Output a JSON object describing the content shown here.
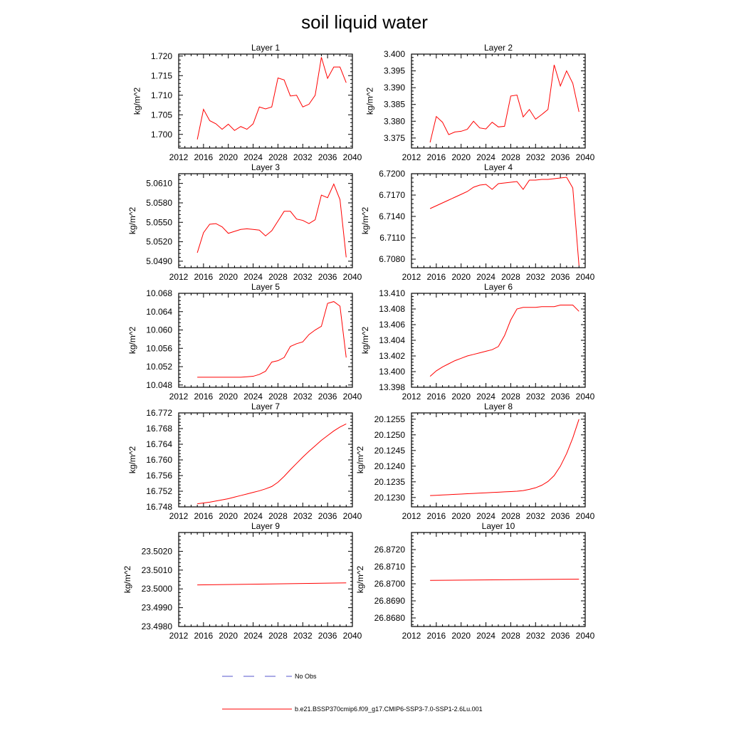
{
  "title": "soil liquid water",
  "colors": {
    "model": "#ff0000",
    "obs": "#5555cc",
    "axis": "#000000"
  },
  "legend": {
    "obs_label": "No Obs",
    "model_label": "b.e21.BSSP370cmip6.f09_g17.CMIP6-SSP3-7.0-SSP1-2.6Lu.001"
  },
  "chart_data": [
    {
      "type": "line",
      "title": "Layer 1",
      "xlabel": "",
      "ylabel": "kg/m^2",
      "xlim": [
        2012,
        2040
      ],
      "ylim": [
        1.6965,
        1.7205
      ],
      "xticks": [
        "2012",
        "2016",
        "2020",
        "2024",
        "2028",
        "2032",
        "2036",
        "2040"
      ],
      "yticks": [
        "1.700",
        "1.705",
        "1.710",
        "1.715",
        "1.720"
      ],
      "series": [
        {
          "x": [
            2015,
            2016,
            2017,
            2018,
            2019,
            2020,
            2021,
            2022,
            2023,
            2024,
            2025,
            2026,
            2027,
            2028,
            2029,
            2030,
            2031,
            2032,
            2033,
            2034,
            2035,
            2036,
            2037,
            2038,
            2039
          ],
          "y": [
            1.6987,
            1.7064,
            1.7035,
            1.7027,
            1.7013,
            1.7026,
            1.701,
            1.702,
            1.7013,
            1.7027,
            1.707,
            1.7065,
            1.707,
            1.7144,
            1.7139,
            1.7098,
            1.71,
            1.707,
            1.7077,
            1.71,
            1.7197,
            1.7143,
            1.7172,
            1.7172,
            1.7132
          ]
        }
      ]
    },
    {
      "type": "line",
      "title": "Layer 2",
      "xlabel": "",
      "ylabel": "kg/m^2",
      "xlim": [
        2012,
        2040
      ],
      "ylim": [
        3.372,
        3.4
      ],
      "xticks": [
        "2012",
        "2016",
        "2020",
        "2024",
        "2028",
        "2032",
        "2036",
        "2040"
      ],
      "yticks": [
        "3.375",
        "3.380",
        "3.385",
        "3.390",
        "3.395",
        "3.400"
      ],
      "series": [
        {
          "x": [
            2015,
            2016,
            2017,
            2018,
            2019,
            2020,
            2021,
            2022,
            2023,
            2024,
            2025,
            2026,
            2027,
            2028,
            2029,
            2030,
            2031,
            2032,
            2033,
            2034,
            2035,
            2036,
            2037,
            2038,
            2039
          ],
          "y": [
            3.3737,
            3.3814,
            3.3797,
            3.376,
            3.3768,
            3.377,
            3.3776,
            3.38,
            3.378,
            3.3777,
            3.3797,
            3.3783,
            3.3785,
            3.3875,
            3.3878,
            3.3813,
            3.3835,
            3.3806,
            3.382,
            3.3835,
            3.3968,
            3.3905,
            3.395,
            3.3913,
            3.3828
          ]
        }
      ]
    },
    {
      "type": "line",
      "title": "Layer 3",
      "xlabel": "",
      "ylabel": "kg/m^2",
      "xlim": [
        2012,
        2040
      ],
      "ylim": [
        5.048,
        5.0625
      ],
      "xticks": [
        "2012",
        "2016",
        "2020",
        "2024",
        "2028",
        "2032",
        "2036",
        "2040"
      ],
      "yticks": [
        "5.0490",
        "5.0520",
        "5.0550",
        "5.0580",
        "5.0610"
      ],
      "series": [
        {
          "x": [
            2015,
            2016,
            2017,
            2018,
            2019,
            2020,
            2021,
            2022,
            2023,
            2024,
            2025,
            2026,
            2027,
            2028,
            2029,
            2030,
            2031,
            2032,
            2033,
            2034,
            2035,
            2036,
            2037,
            2038,
            2039
          ],
          "y": [
            5.0503,
            5.0534,
            5.0547,
            5.0548,
            5.0543,
            5.0533,
            5.0536,
            5.0539,
            5.054,
            5.0539,
            5.0538,
            5.0529,
            5.0537,
            5.0552,
            5.0567,
            5.0567,
            5.0555,
            5.0553,
            5.0548,
            5.0554,
            5.0592,
            5.0588,
            5.0609,
            5.0585,
            5.0496
          ]
        }
      ]
    },
    {
      "type": "line",
      "title": "Layer 4",
      "xlabel": "",
      "ylabel": "kg/m^2",
      "xlim": [
        2012,
        2040
      ],
      "ylim": [
        6.7068,
        6.72
      ],
      "xticks": [
        "2012",
        "2016",
        "2020",
        "2024",
        "2028",
        "2032",
        "2036",
        "2040"
      ],
      "yticks": [
        "6.7080",
        "6.7110",
        "6.7140",
        "6.7170",
        "6.7200"
      ],
      "series": [
        {
          "x": [
            2015,
            2016,
            2017,
            2018,
            2019,
            2020,
            2021,
            2022,
            2023,
            2024,
            2025,
            2026,
            2027,
            2028,
            2029,
            2030,
            2031,
            2032,
            2033,
            2034,
            2035,
            2036,
            2037,
            2038,
            2039
          ],
          "y": [
            6.7151,
            6.7155,
            6.7159,
            6.7163,
            6.7167,
            6.7171,
            6.7175,
            6.7181,
            6.7184,
            6.7185,
            6.7178,
            6.7186,
            6.7187,
            6.7188,
            6.7189,
            6.7178,
            6.7191,
            6.7191,
            6.7192,
            6.7192,
            6.7193,
            6.7194,
            6.7195,
            6.718,
            6.7071
          ]
        }
      ]
    },
    {
      "type": "line",
      "title": "Layer 5",
      "xlabel": "",
      "ylabel": "kg/m^2",
      "xlim": [
        2012,
        2040
      ],
      "ylim": [
        10.0475,
        10.068
      ],
      "xticks": [
        "2012",
        "2016",
        "2020",
        "2024",
        "2028",
        "2032",
        "2036",
        "2040"
      ],
      "yticks": [
        "10.048",
        "10.052",
        "10.056",
        "10.060",
        "10.064",
        "10.068"
      ],
      "series": [
        {
          "x": [
            2015,
            2016,
            2017,
            2018,
            2019,
            2020,
            2021,
            2022,
            2023,
            2024,
            2025,
            2026,
            2027,
            2028,
            2029,
            2030,
            2031,
            2032,
            2033,
            2034,
            2035,
            2036,
            2037,
            2038,
            2039
          ],
          "y": [
            10.0497,
            10.0497,
            10.0497,
            10.0497,
            10.0497,
            10.0497,
            10.0497,
            10.0497,
            10.0498,
            10.0499,
            10.0503,
            10.051,
            10.053,
            10.0533,
            10.054,
            10.0564,
            10.057,
            10.0574,
            10.059,
            10.06,
            10.0608,
            10.0658,
            10.0662,
            10.0652,
            10.054
          ]
        }
      ]
    },
    {
      "type": "line",
      "title": "Layer 6",
      "xlabel": "",
      "ylabel": "kg/m^2",
      "xlim": [
        2012,
        2040
      ],
      "ylim": [
        13.398,
        13.41
      ],
      "xticks": [
        "2012",
        "2016",
        "2020",
        "2024",
        "2028",
        "2032",
        "2036",
        "2040"
      ],
      "yticks": [
        "13.398",
        "13.400",
        "13.402",
        "13.404",
        "13.406",
        "13.408",
        "13.410"
      ],
      "series": [
        {
          "x": [
            2015,
            2016,
            2017,
            2018,
            2019,
            2020,
            2021,
            2022,
            2023,
            2024,
            2025,
            2026,
            2027,
            2028,
            2029,
            2030,
            2031,
            2032,
            2033,
            2034,
            2035,
            2036,
            2037,
            2038,
            2039
          ],
          "y": [
            13.3994,
            13.4001,
            13.4006,
            13.401,
            13.4014,
            13.4017,
            13.402,
            13.4022,
            13.4024,
            13.4026,
            13.4028,
            13.4032,
            13.4046,
            13.4066,
            13.408,
            13.4082,
            13.4082,
            13.4082,
            13.4083,
            13.4083,
            13.4083,
            13.4085,
            13.4085,
            13.4085,
            13.4077
          ]
        }
      ]
    },
    {
      "type": "line",
      "title": "Layer 7",
      "xlabel": "",
      "ylabel": "kg/m^2",
      "xlim": [
        2012,
        2040
      ],
      "ylim": [
        16.748,
        16.772
      ],
      "xticks": [
        "2012",
        "2016",
        "2020",
        "2024",
        "2028",
        "2032",
        "2036",
        "2040"
      ],
      "yticks": [
        "16.748",
        "16.752",
        "16.756",
        "16.760",
        "16.764",
        "16.768",
        "16.772"
      ],
      "series": [
        {
          "x": [
            2015,
            2016,
            2017,
            2018,
            2019,
            2020,
            2021,
            2022,
            2023,
            2024,
            2025,
            2026,
            2027,
            2028,
            2029,
            2030,
            2031,
            2032,
            2033,
            2034,
            2035,
            2036,
            2037,
            2038,
            2039
          ],
          "y": [
            16.7488,
            16.749,
            16.7492,
            16.7495,
            16.7498,
            16.7501,
            16.7505,
            16.7509,
            16.7513,
            16.7517,
            16.7521,
            16.7526,
            16.7532,
            16.7543,
            16.7558,
            16.7575,
            16.7591,
            16.7607,
            16.7622,
            16.7636,
            16.765,
            16.7662,
            16.7674,
            16.7684,
            16.7692
          ]
        }
      ]
    },
    {
      "type": "line",
      "title": "Layer 8",
      "xlabel": "",
      "ylabel": "kg/m^2",
      "xlim": [
        2012,
        2040
      ],
      "ylim": [
        20.1227,
        20.1257
      ],
      "xticks": [
        "2012",
        "2016",
        "2020",
        "2024",
        "2028",
        "2032",
        "2036",
        "2040"
      ],
      "yticks": [
        "20.1230",
        "20.1235",
        "20.1240",
        "20.1245",
        "20.1250",
        "20.1255"
      ],
      "series": [
        {
          "x": [
            2015,
            2016,
            2017,
            2018,
            2019,
            2020,
            2021,
            2022,
            2023,
            2024,
            2025,
            2026,
            2027,
            2028,
            2029,
            2030,
            2031,
            2032,
            2033,
            2034,
            2035,
            2036,
            2037,
            2038,
            2039
          ],
          "y": [
            20.12306,
            20.12307,
            20.12308,
            20.12309,
            20.1231,
            20.12311,
            20.12312,
            20.12313,
            20.12314,
            20.12315,
            20.12316,
            20.12317,
            20.12318,
            20.12319,
            20.1232,
            20.12322,
            20.12326,
            20.12331,
            20.12339,
            20.12351,
            20.1237,
            20.124,
            20.1244,
            20.1249,
            20.1255
          ]
        }
      ]
    },
    {
      "type": "line",
      "title": "Layer 9",
      "xlabel": "",
      "ylabel": "kg/m^2",
      "xlim": [
        2012,
        2040
      ],
      "ylim": [
        23.498,
        23.503
      ],
      "xticks": [
        "2012",
        "2016",
        "2020",
        "2024",
        "2028",
        "2032",
        "2036",
        "2040"
      ],
      "yticks": [
        "23.4980",
        "23.4990",
        "23.5000",
        "23.5010",
        "23.5020"
      ],
      "series": [
        {
          "x": [
            2015,
            2039
          ],
          "y": [
            23.50021,
            23.50032
          ]
        }
      ]
    },
    {
      "type": "line",
      "title": "Layer 10",
      "xlabel": "",
      "ylabel": "kg/m^2",
      "xlim": [
        2012,
        2040
      ],
      "ylim": [
        26.8675,
        26.873
      ],
      "xticks": [
        "2012",
        "2016",
        "2020",
        "2024",
        "2028",
        "2032",
        "2036",
        "2040"
      ],
      "yticks": [
        "26.8680",
        "26.8690",
        "26.8700",
        "26.8710",
        "26.8720"
      ],
      "series": [
        {
          "x": [
            2015,
            2039
          ],
          "y": [
            26.8702,
            26.87027
          ]
        }
      ]
    }
  ]
}
